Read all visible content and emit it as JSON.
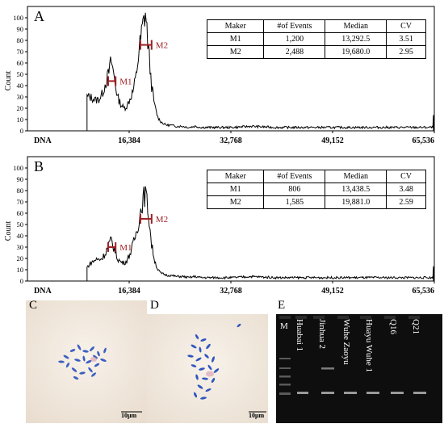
{
  "chart_data": [
    {
      "type": "line",
      "panel_label": "A",
      "ylabel": "Count",
      "xlabel": "DNA",
      "xlim": [
        0,
        65536
      ],
      "ylim": [
        0,
        110
      ],
      "x_ticks": [
        16384,
        32768,
        49152,
        65536
      ],
      "x_tick_labels": [
        "16,384",
        "32,768",
        "49,152",
        "65,536"
      ],
      "y_ticks": [
        0,
        10,
        20,
        30,
        40,
        50,
        60,
        70,
        80,
        90,
        100
      ],
      "y_tick_labels": [
        "0",
        "10",
        "20",
        "30",
        "40",
        "50",
        "60",
        "70",
        "80",
        "90",
        "100"
      ],
      "series": [
        {
          "x": [
            9600,
            10000,
            10500,
            11000,
            11500,
            12000,
            12500,
            13000,
            13500,
            14000,
            14500,
            15000,
            15500,
            16000,
            16500,
            17000,
            17500,
            18000,
            18500,
            19000,
            19500,
            20000,
            20500,
            21000,
            21500,
            22000,
            22500,
            23000,
            24000,
            25000,
            26000,
            27000,
            28000,
            30000,
            33000,
            36000,
            40000,
            44000,
            48000,
            52000,
            56000,
            60000,
            64000,
            65300,
            65400
          ],
          "y": [
            30,
            30,
            29,
            27,
            28,
            32,
            41,
            49,
            62,
            47,
            30,
            24,
            20,
            22,
            28,
            35,
            48,
            72,
            90,
            105,
            72,
            40,
            22,
            12,
            8,
            6,
            5,
            5,
            4,
            4,
            3,
            4,
            3,
            3,
            3,
            4,
            3,
            3,
            3,
            3,
            3,
            3,
            3,
            3,
            14
          ]
        }
      ],
      "markers": [
        {
          "name": "M1",
          "x_from": 13000,
          "x_to": 14200,
          "y": 44
        },
        {
          "name": "M2",
          "x_from": 18200,
          "x_to": 20000,
          "y": 76
        }
      ],
      "stats_table": {
        "headers": [
          "Maker",
          "#of Events",
          "Median",
          "CV"
        ],
        "rows": [
          [
            "M1",
            "1,200",
            "13,292.5",
            "3.51"
          ],
          [
            "M2",
            "2,488",
            "19,680.0",
            "2.95"
          ]
        ]
      }
    },
    {
      "type": "line",
      "panel_label": "B",
      "ylabel": "Count",
      "xlabel": "DNA",
      "xlim": [
        0,
        65536
      ],
      "ylim": [
        0,
        110
      ],
      "x_ticks": [
        16384,
        32768,
        49152,
        65536
      ],
      "x_tick_labels": [
        "16,384",
        "32,768",
        "49,152",
        "65,536"
      ],
      "y_ticks": [
        0,
        10,
        20,
        30,
        40,
        50,
        60,
        70,
        80,
        90,
        100
      ],
      "y_tick_labels": [
        "0",
        "10",
        "20",
        "30",
        "40",
        "50",
        "60",
        "70",
        "80",
        "90",
        "100"
      ],
      "series": [
        {
          "x": [
            9600,
            10000,
            10500,
            11000,
            11500,
            12000,
            12500,
            13000,
            13500,
            14000,
            14500,
            15000,
            15500,
            16000,
            16500,
            17000,
            17500,
            18000,
            18500,
            19000,
            19500,
            20000,
            20500,
            21000,
            21500,
            22000,
            22500,
            23000,
            24000,
            25000,
            26000,
            27000,
            28000,
            30000,
            33000,
            36000,
            40000,
            44000,
            48000,
            52000,
            56000,
            60000,
            64000,
            65300,
            65400
          ],
          "y": [
            12,
            15,
            17,
            19,
            19,
            20,
            24,
            31,
            36,
            28,
            20,
            17,
            16,
            18,
            24,
            32,
            42,
            55,
            70,
            78,
            60,
            32,
            18,
            10,
            7,
            6,
            5,
            5,
            4,
            4,
            3,
            4,
            3,
            3,
            3,
            4,
            3,
            3,
            3,
            3,
            3,
            3,
            3,
            3,
            13
          ]
        }
      ],
      "markers": [
        {
          "name": "M1",
          "x_from": 13000,
          "x_to": 14200,
          "y": 30
        },
        {
          "name": "M2",
          "x_from": 18200,
          "x_to": 20000,
          "y": 55
        }
      ],
      "stats_table": {
        "headers": [
          "Maker",
          "#of Events",
          "Median",
          "CV"
        ],
        "rows": [
          [
            "M1",
            "806",
            "13,438.5",
            "3.48"
          ],
          [
            "M2",
            "1,585",
            "19,881.0",
            "2.59"
          ]
        ]
      }
    }
  ],
  "micro_c": {
    "panel_label": "C",
    "scale_bar": "10μm"
  },
  "micro_d": {
    "panel_label": "D",
    "scale_bar": "10μm"
  },
  "gel": {
    "panel_label": "E",
    "marker_label": "M",
    "lanes": [
      "Huabai 1",
      "Jinhua 2",
      "Wuhe Zaoyu",
      "Huayu Wuhe 1",
      "Q16",
      "Q21"
    ]
  },
  "colors": {
    "marker": "#a02024",
    "histogram": "#000000",
    "gel_bg": "#0e0e0e",
    "chromosome": "#3c5fc0"
  }
}
